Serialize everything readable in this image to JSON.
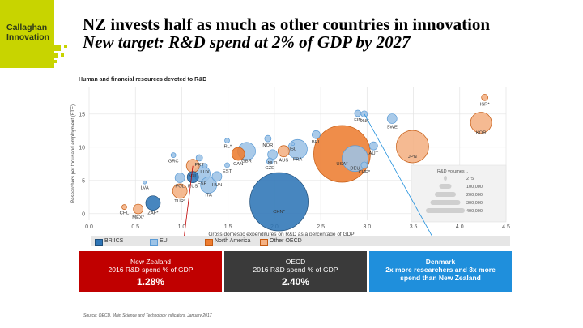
{
  "brand": {
    "line1": "Callaghan",
    "line2": "Innovation",
    "color": "#c8d400"
  },
  "title": "NZ  invests half as much as other countries in innovation",
  "subtitle": "New target: R&D spend at 2% of GDP by 2027",
  "chart_title": "Human and financial resources devoted to R&D",
  "chart_data": {
    "type": "scatter",
    "xlabel": "Gross domestic expenditures on  R&D as a percentage of GDP",
    "ylabel": "Researchers per thousand employment (FTE)",
    "xlim": [
      0,
      4.5
    ],
    "ylim": [
      -1,
      19
    ],
    "x_ticks": [
      "0.0",
      "0.5",
      "1.0",
      "1.5",
      "2.0",
      "2.5",
      "3.0",
      "3.5",
      "4.0",
      "4.5"
    ],
    "y_ticks": [
      "0",
      "5",
      "10",
      "15"
    ],
    "grid": true,
    "legend_position": "bottom",
    "series": [
      {
        "name": "BRIICS",
        "color": "#2e75b6",
        "border": "#1f4e79"
      },
      {
        "name": "EU",
        "color": "#9dc3e6",
        "border": "#5b9bd5"
      },
      {
        "name": "North America",
        "color": "#ed7d31",
        "border": "#c55a11"
      },
      {
        "name": "Other OECD",
        "color": "#f4b183",
        "border": "#c55a11"
      }
    ],
    "points": [
      {
        "label": "CHL",
        "x": 0.38,
        "y": 1.0,
        "series": 3,
        "size": 3
      },
      {
        "label": "MEX*",
        "x": 0.53,
        "y": 0.7,
        "series": 3,
        "size": 6
      },
      {
        "label": "ZAF*",
        "x": 0.69,
        "y": 1.6,
        "series": 0,
        "size": 9
      },
      {
        "label": "LVA",
        "x": 0.6,
        "y": 4.7,
        "series": 1,
        "size": 2
      },
      {
        "label": "TUR*",
        "x": 0.98,
        "y": 3.4,
        "series": 3,
        "size": 9
      },
      {
        "label": "POL",
        "x": 0.98,
        "y": 5.4,
        "series": 1,
        "size": 6
      },
      {
        "label": "GRC",
        "x": 0.91,
        "y": 8.8,
        "series": 1,
        "size": 3
      },
      {
        "label": "RUS",
        "x": 1.12,
        "y": 5.5,
        "series": 0,
        "size": 7
      },
      {
        "label": "NZL",
        "x": 1.12,
        "y": 7.2,
        "series": 3,
        "size": 8
      },
      {
        "label": "ESP",
        "x": 1.22,
        "y": 6.0,
        "series": 1,
        "size": 10
      },
      {
        "label": "PRT",
        "x": 1.19,
        "y": 8.4,
        "series": 1,
        "size": 4
      },
      {
        "label": "LUX",
        "x": 1.25,
        "y": 7.2,
        "series": 1,
        "size": 3
      },
      {
        "label": "ITA",
        "x": 1.29,
        "y": 4.3,
        "series": 1,
        "size": 10
      },
      {
        "label": "HUN",
        "x": 1.38,
        "y": 5.6,
        "series": 1,
        "size": 6
      },
      {
        "label": "EST",
        "x": 1.49,
        "y": 7.3,
        "series": 1,
        "size": 3
      },
      {
        "label": "IRL*",
        "x": 1.49,
        "y": 11.0,
        "series": 1,
        "size": 3
      },
      {
        "label": "CAN",
        "x": 1.61,
        "y": 9.0,
        "series": 2,
        "size": 8
      },
      {
        "label": "GBR",
        "x": 1.7,
        "y": 9.4,
        "series": 1,
        "size": 11
      },
      {
        "label": "CHN*",
        "x": 2.05,
        "y": 1.8,
        "series": 0,
        "size": 36
      },
      {
        "label": "CZE",
        "x": 1.95,
        "y": 7.9,
        "series": 1,
        "size": 4
      },
      {
        "label": "NOR",
        "x": 1.93,
        "y": 11.3,
        "series": 1,
        "size": 4
      },
      {
        "label": "NLD",
        "x": 1.98,
        "y": 8.9,
        "series": 1,
        "size": 6
      },
      {
        "label": "AUS",
        "x": 2.1,
        "y": 9.4,
        "series": 3,
        "size": 7
      },
      {
        "label": "FRA",
        "x": 2.25,
        "y": 9.7,
        "series": 1,
        "size": 12
      },
      {
        "label": "ISL",
        "x": 2.2,
        "y": 10.5,
        "series": 1,
        "size": 2
      },
      {
        "label": "BEL",
        "x": 2.45,
        "y": 11.9,
        "series": 1,
        "size": 5
      },
      {
        "label": "USA*",
        "x": 2.73,
        "y": 9.0,
        "series": 2,
        "size": 35
      },
      {
        "label": "DEU",
        "x": 2.87,
        "y": 8.3,
        "series": 1,
        "size": 16
      },
      {
        "label": "CHE*",
        "x": 2.97,
        "y": 7.3,
        "series": 1,
        "size": 4
      },
      {
        "label": "AUT",
        "x": 3.07,
        "y": 10.2,
        "series": 1,
        "size": 5
      },
      {
        "label": "FIN",
        "x": 2.9,
        "y": 15.1,
        "series": 1,
        "size": 4
      },
      {
        "label": "DNK",
        "x": 2.97,
        "y": 15.0,
        "series": 1,
        "size": 4
      },
      {
        "label": "SWE",
        "x": 3.27,
        "y": 14.3,
        "series": 1,
        "size": 6
      },
      {
        "label": "JPN",
        "x": 3.49,
        "y": 10.1,
        "series": 3,
        "size": 20
      },
      {
        "label": "ISR*",
        "x": 4.27,
        "y": 17.5,
        "series": 3,
        "size": 4
      },
      {
        "label": "KOR",
        "x": 4.23,
        "y": 13.7,
        "series": 3,
        "size": 13
      }
    ],
    "size_legend": {
      "title": "R&D volumes ..",
      "values": [
        "275",
        "100,000",
        "200,000",
        "300,000",
        "400,000"
      ]
    }
  },
  "boxes": [
    {
      "line1": "New Zealand",
      "line2": "2016 R&D spend % of GDP",
      "value": "1.28%",
      "color": "#c00000"
    },
    {
      "line1": "OECD",
      "line2": "2016 R&D spend % of GDP",
      "value": "2.40%",
      "color": "#3a3a3a"
    },
    {
      "line1": "Denmark",
      "line2": "2x more researchers and 3x more spend than New Zealand",
      "value": "",
      "color": "#1f8fdc"
    }
  ],
  "source": "Source: OECD, Main Science and Technology Indicators, January 2017"
}
